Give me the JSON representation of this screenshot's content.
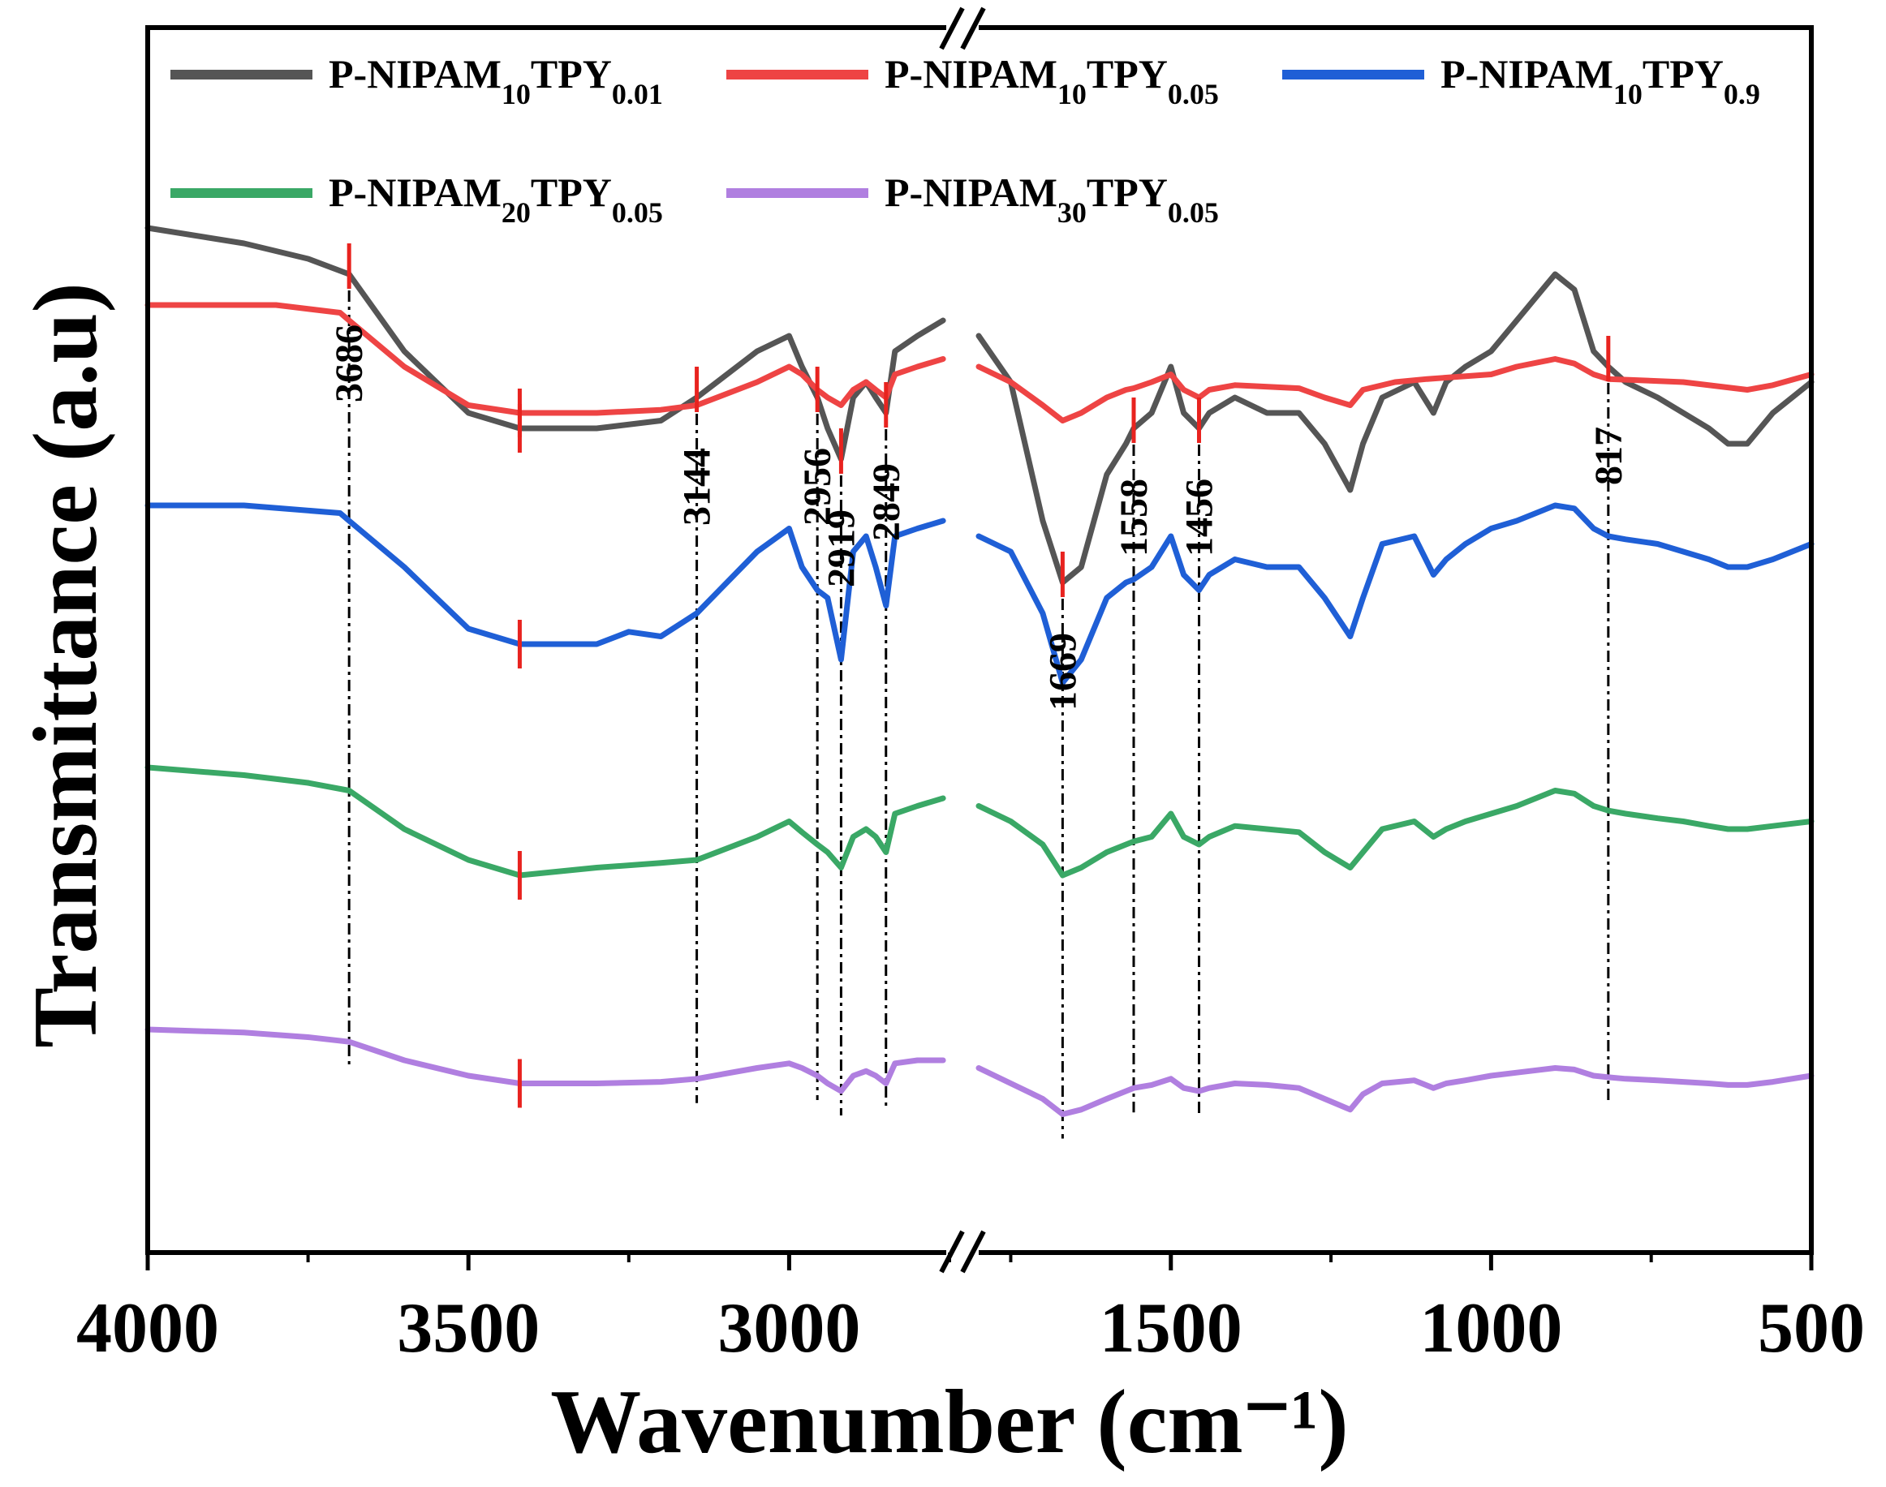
{
  "chart_data": {
    "type": "line",
    "title": "",
    "xlabel": "Wavenumber (cm⁻¹)",
    "ylabel": "Transmittance (a.u)",
    "xlim": [
      4000,
      500
    ],
    "axis_break": [
      2750,
      1800
    ],
    "x_ticks": [
      "4000",
      "3500",
      "3000",
      "1500",
      "1000",
      "500"
    ],
    "grid": false,
    "legend_position": "top",
    "series": [
      {
        "name": "P-NIPAM10TPY0.01",
        "base": "P-NIPAM",
        "sub1": "10",
        "mid": "TPY",
        "sub2": "0.01",
        "color": "#555555",
        "x": [
          4000,
          3850,
          3750,
          3686,
          3600,
          3500,
          3420,
          3300,
          3200,
          3144,
          3050,
          3000,
          2980,
          2956,
          2940,
          2919,
          2900,
          2880,
          2865,
          2849,
          2835,
          2800,
          2760,
          1800,
          1750,
          1700,
          1669,
          1640,
          1600,
          1570,
          1558,
          1530,
          1500,
          1480,
          1456,
          1440,
          1400,
          1350,
          1300,
          1260,
          1220,
          1200,
          1170,
          1120,
          1090,
          1070,
          1040,
          1000,
          960,
          900,
          870,
          840,
          817,
          790,
          740,
          700,
          660,
          630,
          600,
          560,
          500
        ],
        "y": [
          0.94,
          0.93,
          0.92,
          0.91,
          0.86,
          0.82,
          0.81,
          0.81,
          0.815,
          0.83,
          0.86,
          0.87,
          0.85,
          0.83,
          0.81,
          0.79,
          0.83,
          0.84,
          0.83,
          0.82,
          0.86,
          0.87,
          0.88,
          0.87,
          0.84,
          0.75,
          0.71,
          0.72,
          0.78,
          0.8,
          0.81,
          0.82,
          0.85,
          0.82,
          0.81,
          0.82,
          0.83,
          0.82,
          0.82,
          0.8,
          0.77,
          0.8,
          0.83,
          0.84,
          0.82,
          0.84,
          0.85,
          0.86,
          0.88,
          0.91,
          0.9,
          0.86,
          0.85,
          0.84,
          0.83,
          0.82,
          0.81,
          0.8,
          0.8,
          0.82,
          0.84
        ]
      },
      {
        "name": "P-NIPAM10TPY0.05",
        "base": "P-NIPAM",
        "sub1": "10",
        "mid": "TPY",
        "sub2": "0.05",
        "color": "#ee4444",
        "x": [
          4000,
          3800,
          3700,
          3686,
          3600,
          3500,
          3420,
          3300,
          3200,
          3144,
          3050,
          3000,
          2980,
          2956,
          2940,
          2919,
          2900,
          2880,
          2865,
          2849,
          2835,
          2800,
          2760,
          1800,
          1750,
          1700,
          1669,
          1640,
          1600,
          1570,
          1558,
          1530,
          1500,
          1480,
          1456,
          1440,
          1400,
          1300,
          1260,
          1220,
          1200,
          1150,
          1100,
          1000,
          960,
          900,
          870,
          840,
          817,
          700,
          600,
          560,
          500
        ],
        "y": [
          0.94,
          0.94,
          0.935,
          0.93,
          0.9,
          0.875,
          0.87,
          0.87,
          0.872,
          0.875,
          0.89,
          0.9,
          0.895,
          0.885,
          0.88,
          0.875,
          0.885,
          0.89,
          0.885,
          0.88,
          0.895,
          0.9,
          0.905,
          0.9,
          0.89,
          0.875,
          0.865,
          0.87,
          0.88,
          0.885,
          0.886,
          0.89,
          0.895,
          0.885,
          0.88,
          0.885,
          0.888,
          0.886,
          0.88,
          0.875,
          0.885,
          0.89,
          0.892,
          0.895,
          0.9,
          0.905,
          0.902,
          0.895,
          0.892,
          0.89,
          0.885,
          0.888,
          0.895
        ]
      },
      {
        "name": "P-NIPAM10TPY0.9",
        "base": "P-NIPAM",
        "sub1": "10",
        "mid": "TPY",
        "sub2": "0.9",
        "color": "#1f5fd6",
        "x": [
          4000,
          3850,
          3700,
          3686,
          3600,
          3500,
          3420,
          3300,
          3250,
          3200,
          3144,
          3050,
          3000,
          2980,
          2956,
          2940,
          2919,
          2900,
          2880,
          2865,
          2849,
          2835,
          2800,
          2760,
          1800,
          1750,
          1700,
          1669,
          1640,
          1600,
          1570,
          1558,
          1530,
          1500,
          1480,
          1456,
          1440,
          1400,
          1350,
          1300,
          1260,
          1220,
          1200,
          1170,
          1120,
          1090,
          1070,
          1040,
          1000,
          960,
          900,
          870,
          840,
          817,
          790,
          740,
          700,
          660,
          630,
          600,
          560,
          500
        ],
        "y": [
          0.96,
          0.96,
          0.955,
          0.95,
          0.92,
          0.88,
          0.87,
          0.87,
          0.878,
          0.875,
          0.89,
          0.93,
          0.945,
          0.92,
          0.905,
          0.9,
          0.86,
          0.93,
          0.94,
          0.92,
          0.895,
          0.94,
          0.945,
          0.95,
          0.94,
          0.93,
          0.89,
          0.845,
          0.86,
          0.9,
          0.91,
          0.912,
          0.92,
          0.94,
          0.915,
          0.905,
          0.915,
          0.925,
          0.92,
          0.92,
          0.9,
          0.875,
          0.9,
          0.935,
          0.94,
          0.915,
          0.925,
          0.935,
          0.945,
          0.95,
          0.96,
          0.958,
          0.945,
          0.94,
          0.938,
          0.935,
          0.93,
          0.925,
          0.92,
          0.92,
          0.925,
          0.935
        ]
      },
      {
        "name": "P-NIPAM20TPY0.05",
        "base": "P-NIPAM",
        "sub1": "20",
        "mid": "TPY",
        "sub2": "0.05",
        "color": "#3aa866",
        "x": [
          4000,
          3850,
          3750,
          3686,
          3600,
          3500,
          3420,
          3300,
          3200,
          3144,
          3050,
          3000,
          2980,
          2956,
          2940,
          2919,
          2900,
          2880,
          2865,
          2849,
          2835,
          2800,
          2760,
          1800,
          1750,
          1700,
          1669,
          1640,
          1600,
          1570,
          1558,
          1530,
          1500,
          1480,
          1456,
          1440,
          1400,
          1350,
          1300,
          1260,
          1220,
          1200,
          1170,
          1120,
          1090,
          1070,
          1040,
          1000,
          960,
          900,
          870,
          840,
          817,
          790,
          740,
          700,
          660,
          630,
          600,
          560,
          500
        ],
        "y": [
          0.96,
          0.955,
          0.95,
          0.945,
          0.92,
          0.9,
          0.89,
          0.895,
          0.898,
          0.9,
          0.915,
          0.925,
          0.918,
          0.91,
          0.905,
          0.895,
          0.915,
          0.92,
          0.915,
          0.905,
          0.93,
          0.935,
          0.94,
          0.935,
          0.925,
          0.91,
          0.89,
          0.895,
          0.905,
          0.91,
          0.912,
          0.915,
          0.93,
          0.915,
          0.91,
          0.915,
          0.922,
          0.92,
          0.918,
          0.905,
          0.895,
          0.905,
          0.92,
          0.925,
          0.915,
          0.92,
          0.925,
          0.93,
          0.935,
          0.945,
          0.943,
          0.935,
          0.932,
          0.93,
          0.927,
          0.925,
          0.922,
          0.92,
          0.92,
          0.922,
          0.925
        ]
      },
      {
        "name": "P-NIPAM30TPY0.05",
        "base": "P-NIPAM",
        "sub1": "30",
        "mid": "TPY",
        "sub2": "0.05",
        "color": "#b07fe0",
        "x": [
          4000,
          3850,
          3750,
          3686,
          3600,
          3500,
          3420,
          3300,
          3200,
          3144,
          3050,
          3000,
          2980,
          2956,
          2940,
          2919,
          2900,
          2880,
          2865,
          2849,
          2835,
          2800,
          2760,
          1800,
          1750,
          1700,
          1669,
          1640,
          1600,
          1570,
          1558,
          1530,
          1500,
          1480,
          1456,
          1440,
          1400,
          1350,
          1300,
          1260,
          1220,
          1200,
          1170,
          1120,
          1090,
          1070,
          1040,
          1000,
          960,
          900,
          870,
          840,
          817,
          790,
          740,
          700,
          660,
          630,
          600,
          560,
          500
        ],
        "y": [
          0.97,
          0.968,
          0.965,
          0.962,
          0.95,
          0.94,
          0.935,
          0.935,
          0.936,
          0.938,
          0.945,
          0.948,
          0.945,
          0.94,
          0.935,
          0.93,
          0.94,
          0.943,
          0.94,
          0.935,
          0.948,
          0.95,
          0.95,
          0.945,
          0.935,
          0.925,
          0.915,
          0.918,
          0.925,
          0.93,
          0.932,
          0.934,
          0.938,
          0.932,
          0.93,
          0.932,
          0.935,
          0.934,
          0.932,
          0.925,
          0.918,
          0.928,
          0.935,
          0.937,
          0.932,
          0.935,
          0.937,
          0.94,
          0.942,
          0.945,
          0.944,
          0.94,
          0.939,
          0.938,
          0.937,
          0.936,
          0.935,
          0.934,
          0.934,
          0.936,
          0.94
        ]
      }
    ],
    "peaks": [
      {
        "label": "3686",
        "x": 3686
      },
      {
        "label": "3144",
        "x": 3144
      },
      {
        "label": "2956",
        "x": 2956
      },
      {
        "label": "2919",
        "x": 2919
      },
      {
        "label": "2849",
        "x": 2849
      },
      {
        "label": "1669",
        "x": 1669
      },
      {
        "label": "1558",
        "x": 1558
      },
      {
        "label": "1456",
        "x": 1456
      },
      {
        "label": "817",
        "x": 817
      }
    ],
    "oh_marker_x": 3420
  }
}
